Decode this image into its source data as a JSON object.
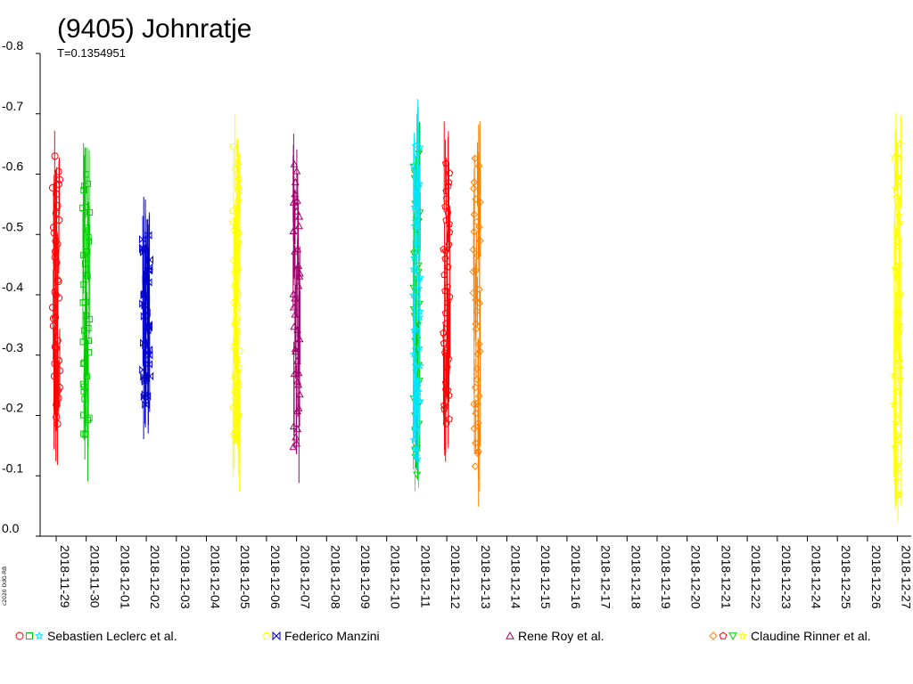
{
  "chart_data": {
    "type": "scatter",
    "title": "(9405) Johnratje",
    "subtitle": "T=0.1354951",
    "credit": "c2020 OdG-RB",
    "ylim": [
      -0.8,
      0.0
    ],
    "y_ticks": [
      "-0.8",
      "-0.7",
      "-0.6",
      "-0.5",
      "-0.4",
      "-0.3",
      "-0.2",
      "-0.1",
      "0.0"
    ],
    "y_tick_values": [
      -0.8,
      -0.7,
      -0.6,
      -0.5,
      -0.4,
      -0.3,
      -0.2,
      -0.1,
      0.0
    ],
    "x_ticks": [
      "2018-11-29",
      "2018-11-30",
      "2018-12-01",
      "2018-12-02",
      "2018-12-03",
      "2018-12-04",
      "2018-12-05",
      "2018-12-06",
      "2018-12-07",
      "2018-12-08",
      "2018-12-09",
      "2018-12-10",
      "2018-12-11",
      "2018-12-12",
      "2018-12-13",
      "2018-12-14",
      "2018-12-15",
      "2018-12-16",
      "2018-12-17",
      "2018-12-18",
      "2018-12-19",
      "2018-12-20",
      "2018-12-21",
      "2018-12-22",
      "2018-12-23",
      "2018-12-24",
      "2018-12-25",
      "2018-12-26",
      "2018-12-27"
    ],
    "grid": false,
    "legend": [
      {
        "label": "Sebastien Leclerc et al.",
        "colors": [
          "#ff0000",
          "#00cc00",
          "#00e5ff"
        ],
        "markers": [
          "circle",
          "square",
          "star"
        ]
      },
      {
        "label": "Federico Manzini",
        "colors": [
          "#ffff00",
          "#0000cc"
        ],
        "markers": [
          "hexagon",
          "bowtie"
        ]
      },
      {
        "label": "Rene Roy et al.",
        "colors": [
          "#a0006e"
        ],
        "markers": [
          "triangle"
        ]
      },
      {
        "label": "Claudine Rinner et al.",
        "colors": [
          "#ff8000",
          "#ff0000",
          "#00cc00",
          "#ffff00"
        ],
        "markers": [
          "diamond",
          "pentagon",
          "triangle-down",
          "star"
        ]
      }
    ],
    "series": [
      {
        "color": "#ff0000",
        "marker": "circle",
        "x_range": [
          "2018-11-29",
          "2018-11-29"
        ],
        "y_range": [
          -0.62,
          -0.19
        ]
      },
      {
        "color": "#00cc00",
        "marker": "square",
        "x_range": [
          "2018-11-30",
          "2018-11-30"
        ],
        "y_range": [
          -0.6,
          -0.16
        ]
      },
      {
        "color": "#0000cc",
        "marker": "bowtie",
        "x_range": [
          "2018-12-02",
          "2018-12-02"
        ],
        "y_range": [
          -0.5,
          -0.22
        ]
      },
      {
        "color": "#ffff00",
        "marker": "hexagon",
        "x_range": [
          "2018-12-05",
          "2018-12-05"
        ],
        "y_range": [
          -0.64,
          -0.15
        ]
      },
      {
        "color": "#a0006e",
        "marker": "triangle",
        "x_range": [
          "2018-12-07",
          "2018-12-07"
        ],
        "y_range": [
          -0.61,
          -0.14
        ]
      },
      {
        "color": "#00cc00",
        "marker": "triangle-down",
        "x_range": [
          "2018-12-11",
          "2018-12-11"
        ],
        "y_range": [
          -0.63,
          -0.11
        ]
      },
      {
        "color": "#00e5ff",
        "marker": "star",
        "x_range": [
          "2018-12-11",
          "2018-12-11"
        ],
        "y_range": [
          -0.65,
          -0.12
        ]
      },
      {
        "color": "#ff0000",
        "marker": "pentagon",
        "x_range": [
          "2018-12-12",
          "2018-12-12"
        ],
        "y_range": [
          -0.62,
          -0.18
        ]
      },
      {
        "color": "#ff8000",
        "marker": "diamond",
        "x_range": [
          "2018-12-13",
          "2018-12-13"
        ],
        "y_range": [
          -0.62,
          -0.12
        ]
      },
      {
        "color": "#ffff00",
        "marker": "star",
        "x_range": [
          "2018-12-27",
          "2018-12-27"
        ],
        "y_range": [
          -0.65,
          -0.06
        ]
      }
    ]
  }
}
